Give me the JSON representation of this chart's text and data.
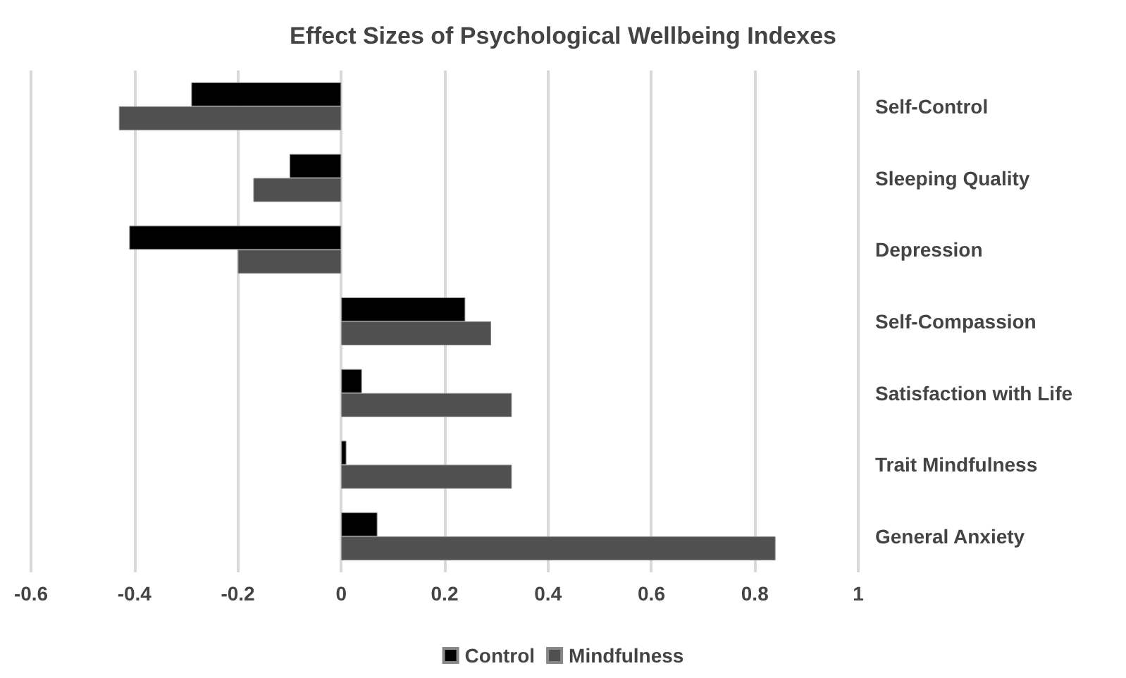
{
  "chart_data": {
    "type": "bar",
    "orientation": "horizontal",
    "title": "Effect Sizes of Psychological Wellbeing Indexes",
    "categories": [
      "Self-Control",
      "Sleeping Quality",
      "Depression",
      "Self-Compassion",
      "Satisfaction with Life",
      "Trait Mindfulness",
      "General Anxiety"
    ],
    "series": [
      {
        "name": "Control",
        "color": "#000000",
        "values": [
          -0.29,
          -0.1,
          -0.41,
          0.24,
          0.04,
          0.01,
          0.07
        ]
      },
      {
        "name": "Mindfulness",
        "color": "#505050",
        "values": [
          -0.43,
          -0.17,
          -0.2,
          0.29,
          0.33,
          0.33,
          0.84
        ]
      }
    ],
    "xlim": [
      -0.6,
      1
    ],
    "xticks": [
      -0.6,
      -0.4,
      -0.2,
      0,
      0.2,
      0.4,
      0.6,
      0.8,
      1
    ],
    "grid": "x",
    "legend": "bottom"
  }
}
